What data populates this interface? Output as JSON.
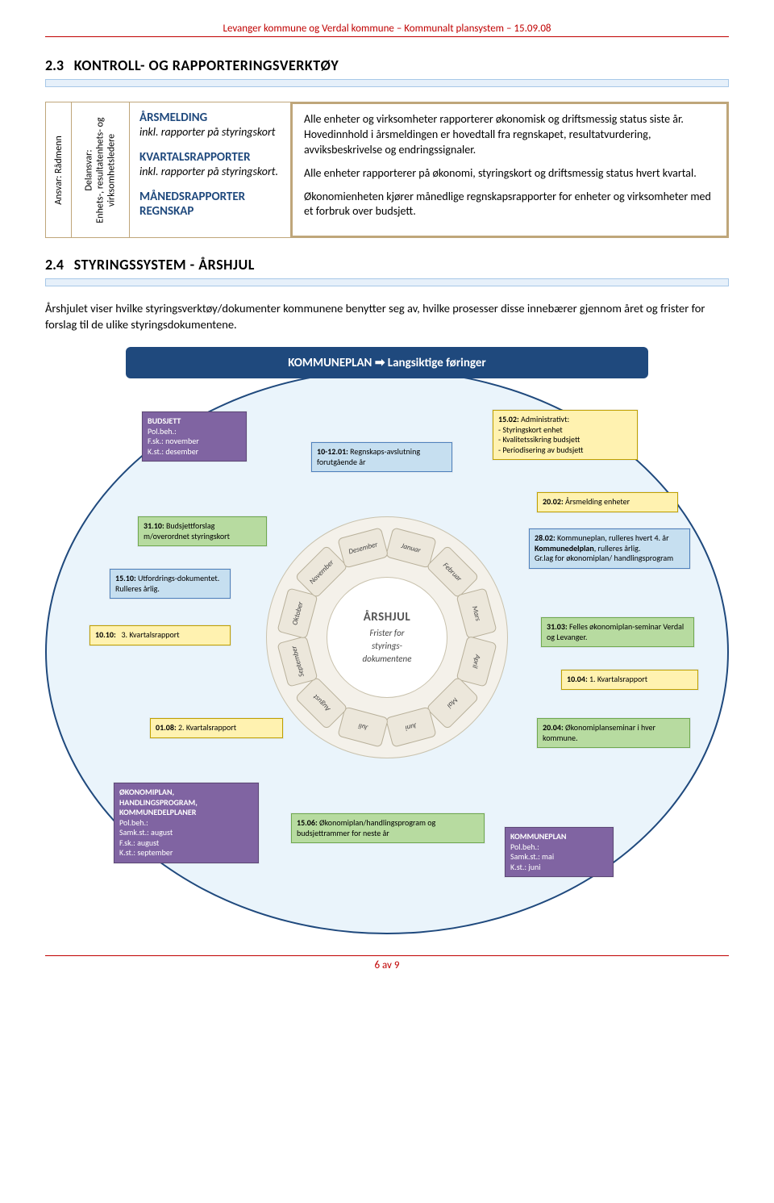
{
  "header": "Levanger kommune og Verdal kommune – Kommunalt plansystem – 15.09.08",
  "sec23": {
    "num": "2.3",
    "title": "KONTROLL- OG RAPPORTERINGSVERKTØY",
    "ansvar": "Ansvar: Rådmenn",
    "delansvar_l1": "Delansvar:",
    "delansvar_l2": "Enhets-, resultatenhets- og",
    "delansvar_l3": "virksomhetsledere",
    "left": {
      "a1": "ÅRSMELDING",
      "a2": "inkl. rapporter på styringskort",
      "b1": "KVARTALSRAPPORTER",
      "b2": "inkl. rapporter på styringskort.",
      "c1": "MÅNEDSRAPPORTER REGNSKAP"
    },
    "right": {
      "p1": "Alle enheter og virksomheter rapporterer økonomisk og driftsmessig status siste år. Hovedinnhold i årsmeldingen er hovedtall fra regnskapet, resultatvurdering, avviksbeskrivelse og endringssignaler.",
      "p2": "Alle enheter rapporterer på økonomi, styringskort og driftsmessig status hvert kvartal.",
      "p3": "Økonomienheten kjører månedlige regnskapsrapporter for enheter og virksomheter med et forbruk over budsjett."
    }
  },
  "sec24": {
    "num": "2.4",
    "title": "STYRINGSSYSTEM - ÅRSHJUL",
    "para": "Årshjulet viser hvilke styringsverktøy/dokumenter kommunene benytter seg av, hvilke prosesser disse innebærer gjennom året og frister for forslag til de ulike styringsdokumentene."
  },
  "diagram": {
    "banner": "KOMMUNEPLAN ➡ Langsiktige føringer",
    "wheel_title": "ÅRSHJUL",
    "wheel_sub1": "Frister for",
    "wheel_sub2": "styrings-",
    "wheel_sub3": "dokumentene",
    "months": [
      "Januar",
      "Februar",
      "Mars",
      "April",
      "Mai",
      "Juni",
      "Juli",
      "August",
      "September",
      "Oktober",
      "November",
      "Desember"
    ],
    "callouts": {
      "budsjett": {
        "l1": "BUDSJETT",
        "l2": "Pol.beh.:",
        "l3": "F.sk.: november",
        "l4": "K.st.: desember"
      },
      "c3110": "31.10: Budsjettforslag m/overordnet styringskort",
      "c1510": "15.10: Utfordrings-dokumentet. Rulleres årlig.",
      "c1010": "10.10:   3. Kvartalsrapport",
      "c0108": "01.08: 2. Kvartalsrapport",
      "okon": {
        "l1": "ØKONOMIPLAN, HANDLINGSPROGRAM, KOMMUNEDELPLANER",
        "l2": "Pol.beh.:",
        "l3": "Samk.st.: august",
        "l4": "F.sk.: august",
        "l5": "K.st.: september"
      },
      "c1012": "10-12.01: Regnskaps-avslutning forutgående år",
      "c1506": "15.06: Økonomiplan/handlingsprogram og budsjettrammer for neste år",
      "c1502": {
        "l1": "15.02: Administrativt:",
        "l2": "- Styringskort enhet",
        "l3": "- Kvalitetssikring budsjett",
        "l4": "- Periodisering av budsjett"
      },
      "c2002": "20.02: Årsmelding enheter",
      "c2802": "28.02: Kommuneplan, rulleres hvert 4. år\nKommunedelplan, rulleres årlig.\nGr.lag for økonomiplan/ handlingsprogram",
      "c3103": "31.03: Felles økonomiplan-seminar Verdal og Levanger.",
      "c1004": "10.04: 1. Kvartalsrapport",
      "c2004": "20.04: Økonomiplanseminar i hver kommune.",
      "kplan": {
        "l1": "KOMMUNEPLAN",
        "l2": "Pol.beh.:",
        "l3": "Samk.st.: mai",
        "l4": "K.st.: juni"
      }
    }
  },
  "footer": "6 av 9"
}
